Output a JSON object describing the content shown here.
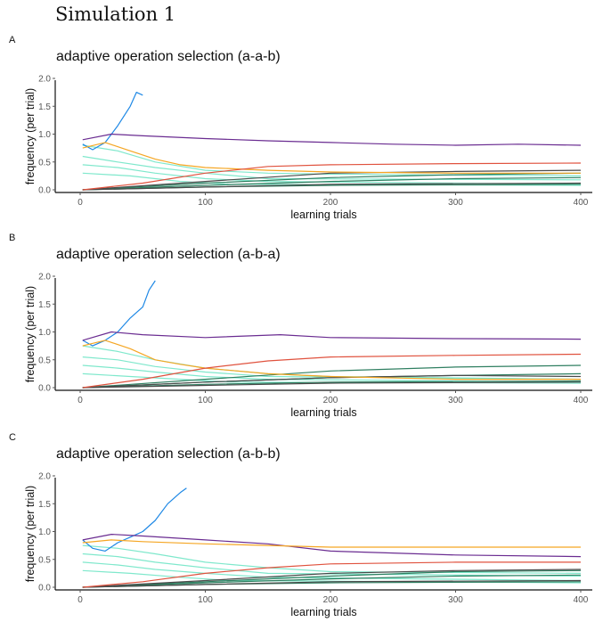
{
  "figure": {
    "title": "Simulation 1"
  },
  "chart_data": [
    {
      "panel_letter": "A",
      "type": "line",
      "title": "adaptive operation selection (a-a-b)",
      "xlabel": "learning trials",
      "ylabel": "frequency (per trial)",
      "xlim": [
        0,
        400
      ],
      "ylim": [
        0,
        2.0
      ],
      "xticks": [
        0,
        100,
        200,
        300,
        400
      ],
      "yticks": [
        0.0,
        0.5,
        1.0,
        1.5,
        2.0
      ],
      "grid": false,
      "series": [
        {
          "color": "#1e88e5",
          "x": [
            2,
            10,
            20,
            30,
            40,
            45,
            50
          ],
          "y": [
            0.82,
            0.72,
            0.85,
            1.15,
            1.5,
            1.75,
            1.7
          ]
        },
        {
          "color": "#6a2c91",
          "x": [
            2,
            25,
            50,
            100,
            150,
            200,
            250,
            300,
            350,
            400
          ],
          "y": [
            0.9,
            1.0,
            0.97,
            0.92,
            0.88,
            0.85,
            0.82,
            0.8,
            0.82,
            0.8
          ]
        },
        {
          "color": "#f5a623",
          "x": [
            2,
            20,
            40,
            60,
            80,
            100,
            150,
            200,
            300,
            400
          ],
          "y": [
            0.75,
            0.85,
            0.7,
            0.55,
            0.45,
            0.4,
            0.35,
            0.32,
            0.3,
            0.3
          ]
        },
        {
          "color": "#e0523e",
          "x": [
            2,
            50,
            100,
            150,
            200,
            300,
            400
          ],
          "y": [
            0.0,
            0.12,
            0.3,
            0.42,
            0.45,
            0.47,
            0.48
          ]
        },
        {
          "color": "#7fe8cc",
          "x": [
            2,
            30,
            60,
            100,
            150,
            200,
            400
          ],
          "y": [
            0.8,
            0.7,
            0.5,
            0.35,
            0.3,
            0.28,
            0.25
          ]
        },
        {
          "color": "#7fe8cc",
          "x": [
            2,
            30,
            60,
            100,
            150,
            400
          ],
          "y": [
            0.6,
            0.5,
            0.4,
            0.3,
            0.2,
            0.18
          ]
        },
        {
          "color": "#7fe8cc",
          "x": [
            2,
            30,
            60,
            100,
            150,
            400
          ],
          "y": [
            0.45,
            0.4,
            0.3,
            0.2,
            0.15,
            0.1
          ]
        },
        {
          "color": "#7fe8cc",
          "x": [
            2,
            40,
            80,
            120,
            400
          ],
          "y": [
            0.3,
            0.25,
            0.15,
            0.1,
            0.08
          ]
        },
        {
          "color": "#2f7f61",
          "x": [
            2,
            100,
            200,
            300,
            400
          ],
          "y": [
            0.0,
            0.12,
            0.22,
            0.27,
            0.3
          ]
        },
        {
          "color": "#2f7f61",
          "x": [
            2,
            100,
            200,
            300,
            400
          ],
          "y": [
            0.0,
            0.08,
            0.15,
            0.2,
            0.22
          ]
        },
        {
          "color": "#2f7f61",
          "x": [
            2,
            100,
            200,
            400
          ],
          "y": [
            0.0,
            0.05,
            0.08,
            0.1
          ]
        },
        {
          "color": "#4a4a4a",
          "x": [
            2,
            100,
            200,
            300,
            400
          ],
          "y": [
            0.0,
            0.15,
            0.3,
            0.33,
            0.35
          ]
        },
        {
          "color": "#4a4a4a",
          "x": [
            2,
            100,
            200,
            400
          ],
          "y": [
            0.0,
            0.05,
            0.1,
            0.12
          ]
        }
      ]
    },
    {
      "panel_letter": "B",
      "type": "line",
      "title": "adaptive operation selection (a-b-a)",
      "xlabel": "learning trials",
      "ylabel": "frequency (per trial)",
      "xlim": [
        0,
        400
      ],
      "ylim": [
        0,
        2.0
      ],
      "xticks": [
        0,
        100,
        200,
        300,
        400
      ],
      "yticks": [
        0.0,
        0.5,
        1.0,
        1.5,
        2.0
      ],
      "grid": false,
      "series": [
        {
          "color": "#1e88e5",
          "x": [
            2,
            10,
            20,
            30,
            40,
            50,
            55,
            60
          ],
          "y": [
            0.85,
            0.75,
            0.85,
            1.0,
            1.25,
            1.45,
            1.75,
            1.92
          ]
        },
        {
          "color": "#6a2c91",
          "x": [
            2,
            25,
            50,
            100,
            160,
            200,
            300,
            400
          ],
          "y": [
            0.85,
            1.0,
            0.95,
            0.9,
            0.95,
            0.9,
            0.88,
            0.87
          ]
        },
        {
          "color": "#f5a623",
          "x": [
            2,
            20,
            40,
            60,
            80,
            100,
            150,
            200,
            300,
            400
          ],
          "y": [
            0.75,
            0.85,
            0.7,
            0.5,
            0.42,
            0.35,
            0.25,
            0.2,
            0.15,
            0.15
          ]
        },
        {
          "color": "#e0523e",
          "x": [
            2,
            50,
            100,
            150,
            200,
            300,
            400
          ],
          "y": [
            0.0,
            0.15,
            0.35,
            0.48,
            0.55,
            0.58,
            0.6
          ]
        },
        {
          "color": "#7fe8cc",
          "x": [
            2,
            30,
            60,
            100,
            150,
            200,
            400
          ],
          "y": [
            0.75,
            0.65,
            0.5,
            0.35,
            0.25,
            0.2,
            0.15
          ]
        },
        {
          "color": "#7fe8cc",
          "x": [
            2,
            30,
            60,
            100,
            150,
            400
          ],
          "y": [
            0.55,
            0.5,
            0.38,
            0.28,
            0.2,
            0.15
          ]
        },
        {
          "color": "#7fe8cc",
          "x": [
            2,
            30,
            60,
            100,
            150,
            400
          ],
          "y": [
            0.4,
            0.35,
            0.28,
            0.2,
            0.15,
            0.1
          ]
        },
        {
          "color": "#7fe8cc",
          "x": [
            2,
            40,
            80,
            120,
            400
          ],
          "y": [
            0.25,
            0.2,
            0.15,
            0.1,
            0.08
          ]
        },
        {
          "color": "#2f7f61",
          "x": [
            2,
            100,
            200,
            300,
            400
          ],
          "y": [
            0.0,
            0.15,
            0.3,
            0.37,
            0.4
          ]
        },
        {
          "color": "#2f7f61",
          "x": [
            2,
            100,
            200,
            300,
            400
          ],
          "y": [
            0.0,
            0.1,
            0.18,
            0.22,
            0.25
          ]
        },
        {
          "color": "#2f7f61",
          "x": [
            2,
            100,
            200,
            400
          ],
          "y": [
            0.0,
            0.06,
            0.1,
            0.12
          ]
        },
        {
          "color": "#4a4a4a",
          "x": [
            2,
            100,
            200,
            300,
            400
          ],
          "y": [
            0.0,
            0.1,
            0.18,
            0.22,
            0.2
          ]
        },
        {
          "color": "#4a4a4a",
          "x": [
            2,
            100,
            200,
            400
          ],
          "y": [
            0.0,
            0.04,
            0.08,
            0.1
          ]
        }
      ]
    },
    {
      "panel_letter": "C",
      "type": "line",
      "title": "adaptive operation selection (a-b-b)",
      "xlabel": "learning trials",
      "ylabel": "frequency (per trial)",
      "xlim": [
        0,
        400
      ],
      "ylim": [
        0,
        2.0
      ],
      "xticks": [
        0,
        100,
        200,
        300,
        400
      ],
      "yticks": [
        0.0,
        0.5,
        1.0,
        1.5,
        2.0
      ],
      "grid": false,
      "series": [
        {
          "color": "#1e88e5",
          "x": [
            2,
            10,
            20,
            30,
            40,
            50,
            60,
            70,
            80,
            85
          ],
          "y": [
            0.85,
            0.7,
            0.65,
            0.8,
            0.9,
            1.0,
            1.2,
            1.5,
            1.7,
            1.78
          ]
        },
        {
          "color": "#6a2c91",
          "x": [
            2,
            25,
            50,
            100,
            150,
            200,
            300,
            400
          ],
          "y": [
            0.85,
            0.95,
            0.92,
            0.85,
            0.78,
            0.65,
            0.58,
            0.55
          ]
        },
        {
          "color": "#f5a623",
          "x": [
            2,
            25,
            50,
            100,
            150,
            200,
            300,
            400
          ],
          "y": [
            0.8,
            0.85,
            0.82,
            0.78,
            0.75,
            0.72,
            0.72,
            0.72
          ]
        },
        {
          "color": "#e0523e",
          "x": [
            2,
            50,
            100,
            150,
            200,
            300,
            400
          ],
          "y": [
            0.0,
            0.1,
            0.25,
            0.35,
            0.42,
            0.45,
            0.45
          ]
        },
        {
          "color": "#7fe8cc",
          "x": [
            2,
            30,
            60,
            100,
            150,
            200,
            400
          ],
          "y": [
            0.75,
            0.7,
            0.6,
            0.45,
            0.35,
            0.28,
            0.25
          ]
        },
        {
          "color": "#7fe8cc",
          "x": [
            2,
            30,
            60,
            100,
            150,
            400
          ],
          "y": [
            0.6,
            0.55,
            0.45,
            0.35,
            0.25,
            0.2
          ]
        },
        {
          "color": "#7fe8cc",
          "x": [
            2,
            30,
            60,
            100,
            150,
            400
          ],
          "y": [
            0.45,
            0.4,
            0.32,
            0.25,
            0.18,
            0.12
          ]
        },
        {
          "color": "#7fe8cc",
          "x": [
            2,
            40,
            80,
            120,
            400
          ],
          "y": [
            0.3,
            0.25,
            0.18,
            0.12,
            0.08
          ]
        },
        {
          "color": "#2f7f61",
          "x": [
            2,
            100,
            200,
            300,
            400
          ],
          "y": [
            0.0,
            0.1,
            0.2,
            0.28,
            0.3
          ]
        },
        {
          "color": "#2f7f61",
          "x": [
            2,
            100,
            200,
            300,
            400
          ],
          "y": [
            0.0,
            0.08,
            0.15,
            0.2,
            0.22
          ]
        },
        {
          "color": "#2f7f61",
          "x": [
            2,
            100,
            200,
            400
          ],
          "y": [
            0.0,
            0.05,
            0.08,
            0.1
          ]
        },
        {
          "color": "#4a4a4a",
          "x": [
            2,
            100,
            200,
            300,
            400
          ],
          "y": [
            0.0,
            0.12,
            0.25,
            0.3,
            0.32
          ]
        },
        {
          "color": "#4a4a4a",
          "x": [
            2,
            100,
            200,
            400
          ],
          "y": [
            0.0,
            0.05,
            0.1,
            0.12
          ]
        }
      ]
    }
  ]
}
